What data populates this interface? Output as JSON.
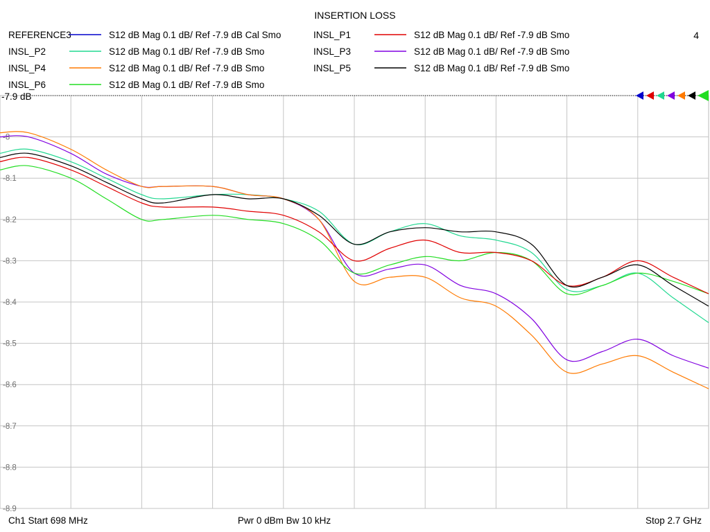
{
  "chart_data": {
    "type": "line",
    "title": "INSERTION LOSS",
    "channel_number": "4",
    "reference_label": "-7.9 dB",
    "footer": {
      "start": "Ch1  Start  698 MHz",
      "center": "Pwr  0 dBm  Bw  10 kHz",
      "stop": "Stop  2.7 GHz"
    },
    "x_range_mhz": [
      698,
      2700
    ],
    "ylim": [
      -8.9,
      -7.9
    ],
    "y_ticks": [
      {
        "value": -8.0,
        "label": "-8"
      },
      {
        "value": -8.1,
        "label": "-8.1"
      },
      {
        "value": -8.2,
        "label": "-8.2"
      },
      {
        "value": -8.3,
        "label": "-8.3"
      },
      {
        "value": -8.4,
        "label": "-8.4"
      },
      {
        "value": -8.5,
        "label": "-8.5"
      },
      {
        "value": -8.6,
        "label": "-8.6"
      },
      {
        "value": -8.7,
        "label": "-8.7"
      },
      {
        "value": -8.8,
        "label": "-8.8"
      },
      {
        "value": -8.9,
        "label": "-8.9"
      }
    ],
    "x_divisions": 10,
    "grid": true,
    "x_fraction": [
      0,
      0.04,
      0.1,
      0.15,
      0.2,
      0.23,
      0.3,
      0.35,
      0.4,
      0.45,
      0.5,
      0.55,
      0.6,
      0.65,
      0.7,
      0.75,
      0.8,
      0.85,
      0.9,
      0.95,
      1.0
    ],
    "series": [
      {
        "name": "REFERENCE3",
        "desc": "S12  dB Mag  0.1 dB/ Ref -7.9 dB  Cal Smo",
        "color": "#0000cc",
        "values": null
      },
      {
        "name": "INSL_P1",
        "desc": "S12  dB Mag  0.1 dB/ Ref -7.9 dB  Smo",
        "color": "#e00000",
        "values": [
          -8.06,
          -8.05,
          -8.08,
          -8.12,
          -8.16,
          -8.17,
          -8.17,
          -8.18,
          -8.19,
          -8.23,
          -8.3,
          -8.27,
          -8.25,
          -8.28,
          -8.28,
          -8.3,
          -8.36,
          -8.34,
          -8.3,
          -8.34,
          -8.38
        ]
      },
      {
        "name": "INSL_P2",
        "desc": "S12  dB Mag  0.1 dB/ Ref -7.9 dB  Smo",
        "color": "#20d890",
        "values": [
          -8.04,
          -8.03,
          -8.06,
          -8.1,
          -8.14,
          -8.15,
          -8.14,
          -8.14,
          -8.15,
          -8.18,
          -8.26,
          -8.23,
          -8.21,
          -8.24,
          -8.25,
          -8.28,
          -8.37,
          -8.36,
          -8.33,
          -8.39,
          -8.45
        ]
      },
      {
        "name": "INSL_P3",
        "desc": "S12  dB Mag  0.1 dB/ Ref -7.9 dB  Smo",
        "color": "#8000e0",
        "values": [
          -8.0,
          -8.0,
          -8.04,
          -8.09,
          -8.12,
          -8.12,
          -8.12,
          -8.14,
          -8.15,
          -8.2,
          -8.33,
          -8.32,
          -8.31,
          -8.36,
          -8.38,
          -8.44,
          -8.54,
          -8.52,
          -8.49,
          -8.53,
          -8.56
        ]
      },
      {
        "name": "INSL_P4",
        "desc": "S12  dB Mag  0.1 dB/ Ref -7.9 dB  Smo",
        "color": "#ff7a00",
        "values": [
          -7.99,
          -7.99,
          -8.03,
          -8.08,
          -8.12,
          -8.12,
          -8.12,
          -8.14,
          -8.15,
          -8.2,
          -8.35,
          -8.34,
          -8.34,
          -8.39,
          -8.41,
          -8.48,
          -8.57,
          -8.55,
          -8.53,
          -8.57,
          -8.61
        ]
      },
      {
        "name": "INSL_P5",
        "desc": "S12  dB Mag  0.1 dB/ Ref -7.9 dB  Smo",
        "color": "#000000",
        "values": [
          -8.05,
          -8.04,
          -8.07,
          -8.11,
          -8.15,
          -8.16,
          -8.14,
          -8.15,
          -8.15,
          -8.19,
          -8.26,
          -8.23,
          -8.22,
          -8.23,
          -8.23,
          -8.26,
          -8.36,
          -8.34,
          -8.31,
          -8.36,
          -8.41
        ]
      },
      {
        "name": "INSL_P6",
        "desc": "S12  dB Mag  0.1 dB/ Ref -7.9 dB  Smo",
        "color": "#22dd22",
        "values": [
          -8.08,
          -8.07,
          -8.1,
          -8.15,
          -8.2,
          -8.2,
          -8.19,
          -8.2,
          -8.21,
          -8.25,
          -8.33,
          -8.31,
          -8.29,
          -8.3,
          -8.28,
          -8.3,
          -8.38,
          -8.36,
          -8.33,
          -8.35,
          -8.38
        ]
      }
    ]
  }
}
